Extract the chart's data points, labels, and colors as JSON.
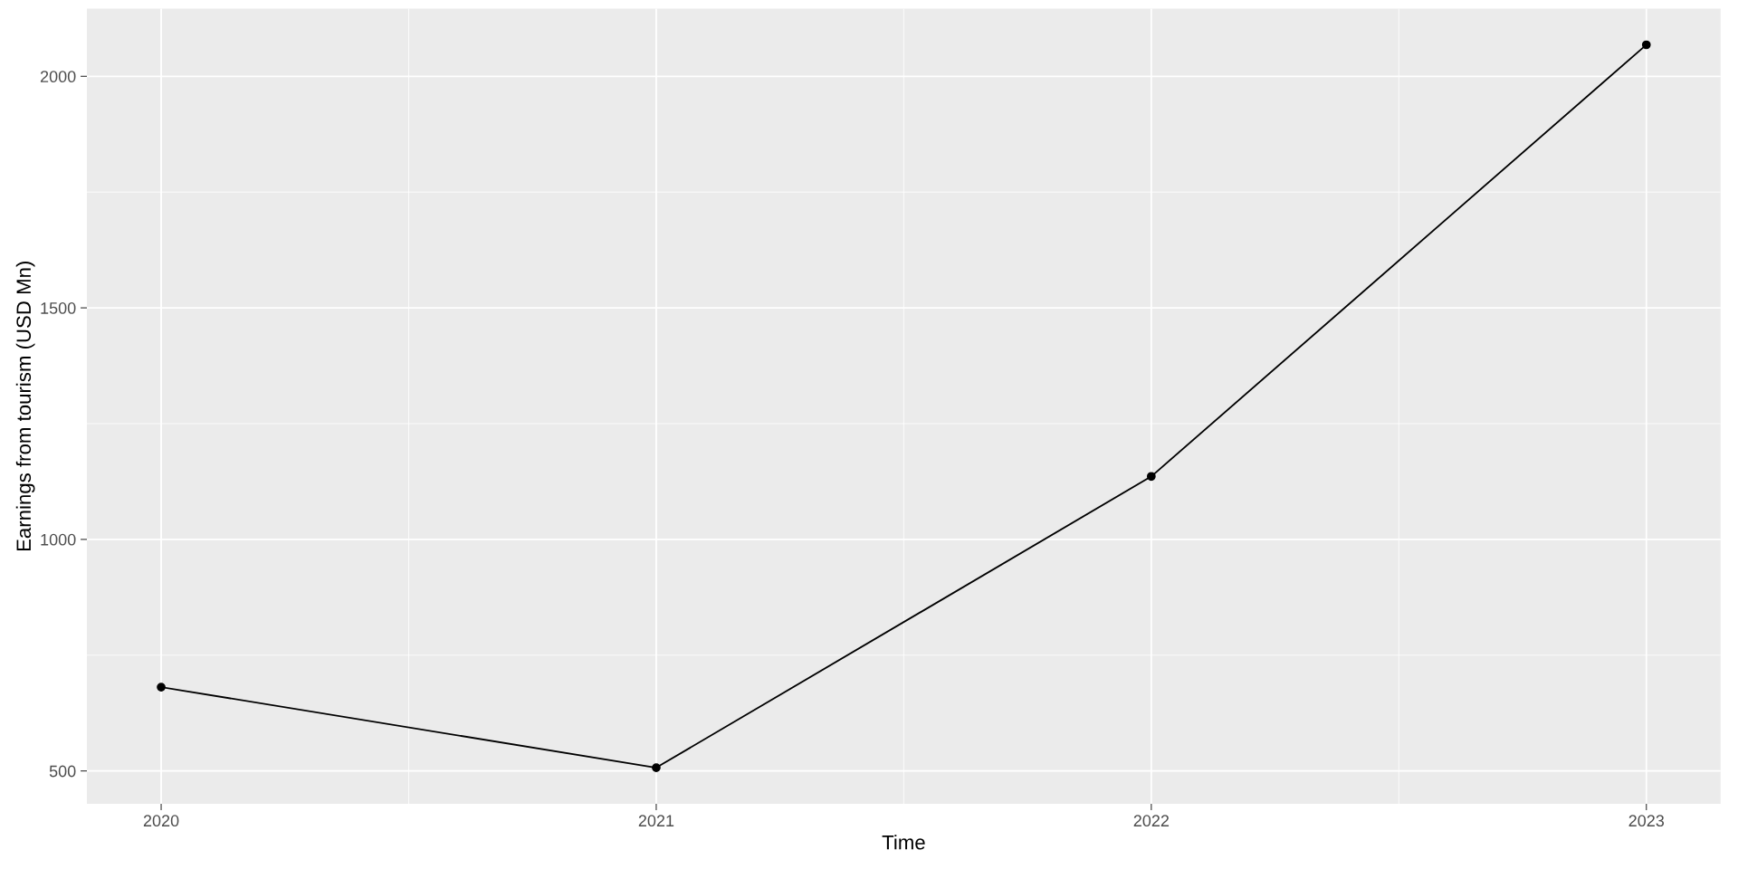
{
  "chart_data": {
    "type": "line",
    "xlabel": "Time",
    "ylabel": "Earnings from tourism (USD Mn)",
    "x": [
      2020,
      2021,
      2022,
      2023
    ],
    "series": [
      {
        "color": "#000000",
        "values": [
          681,
          507,
          1136,
          2068
        ]
      }
    ],
    "xlim": [
      2019.85,
      2023.15
    ],
    "xticks": [
      2020,
      2021,
      2022,
      2023
    ],
    "ylim": [
      429,
      2146
    ],
    "yticks": [
      500,
      1000,
      1500,
      2000
    ],
    "grid": true,
    "marker": "circle",
    "line_style": "solid"
  }
}
